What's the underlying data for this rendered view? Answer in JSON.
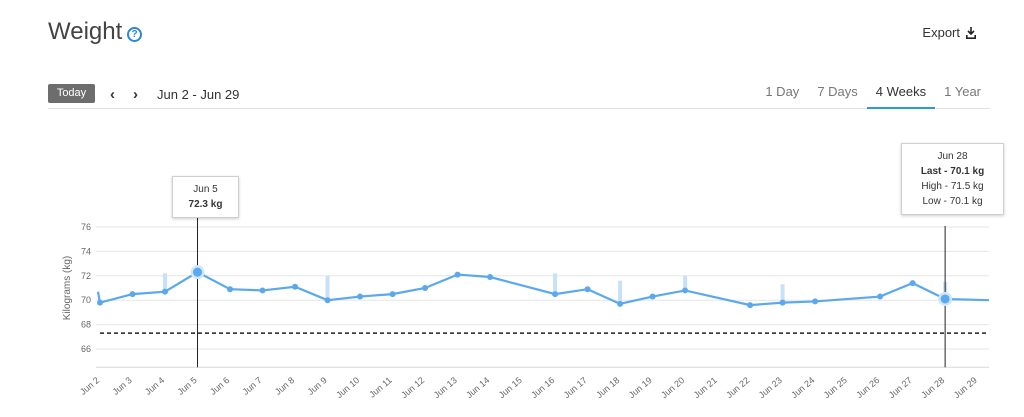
{
  "header": {
    "title": "Weight",
    "help_icon": "question-circle-icon",
    "export_label": "Export",
    "export_icon": "export-icon"
  },
  "controls": {
    "today_label": "Today",
    "prev_icon": "chevron-left-icon",
    "next_icon": "chevron-right-icon",
    "date_range": "Jun 2 - Jun 29",
    "tabs": [
      {
        "label": "1 Day",
        "active": false
      },
      {
        "label": "7 Days",
        "active": false
      },
      {
        "label": "4 Weeks",
        "active": true
      },
      {
        "label": "1 Year",
        "active": false
      }
    ]
  },
  "tooltips": {
    "left": {
      "date": "Jun 5",
      "value": "72.3 kg"
    },
    "right": {
      "date": "Jun 28",
      "last": "Last - 70.1 kg",
      "high": "High - 71.5 kg",
      "low": "Low - 70.1 kg"
    }
  },
  "chart_data": {
    "type": "line",
    "ylabel": "Kilograms (kg)",
    "ylim": [
      65,
      77
    ],
    "yticks": [
      66,
      68,
      70,
      72,
      74,
      76
    ],
    "grid": true,
    "categories": [
      "Jun 2",
      "Jun 3",
      "Jun 4",
      "Jun 5",
      "Jun 6",
      "Jun 7",
      "Jun 8",
      "Jun 9",
      "Jun 10",
      "Jun 11",
      "Jun 12",
      "Jun 13",
      "Jun 14",
      "Jun 15",
      "Jun 16",
      "Jun 17",
      "Jun 18",
      "Jun 19",
      "Jun 20",
      "Jun 21",
      "Jun 22",
      "Jun 23",
      "Jun 24",
      "Jun 25",
      "Jun 26",
      "Jun 27",
      "Jun 28",
      "Jun 29"
    ],
    "series": [
      {
        "values": [
          69.8,
          70.5,
          70.7,
          72.3,
          70.9,
          70.8,
          71.1,
          70.0,
          70.3,
          70.5,
          71.0,
          72.1,
          71.9,
          null,
          70.5,
          70.9,
          69.7,
          70.3,
          70.8,
          null,
          69.6,
          69.8,
          69.9,
          null,
          70.3,
          71.4,
          70.1,
          null
        ],
        "color": "#5aa8ee"
      }
    ],
    "range_bars": [
      {
        "category": "Jun 4",
        "low": 70.7,
        "high": 72.2
      },
      {
        "category": "Jun 9",
        "low": 70.0,
        "high": 72.0
      },
      {
        "category": "Jun 16",
        "low": 70.5,
        "high": 72.2
      },
      {
        "category": "Jun 18",
        "low": 69.7,
        "high": 71.6
      },
      {
        "category": "Jun 20",
        "low": 70.8,
        "high": 72.0
      },
      {
        "category": "Jun 23",
        "low": 69.8,
        "high": 71.3
      },
      {
        "category": "Jun 28",
        "low": 70.1,
        "high": 71.5
      }
    ],
    "goal_line": 67.3,
    "highlighted": [
      "Jun 5",
      "Jun 28"
    ]
  }
}
